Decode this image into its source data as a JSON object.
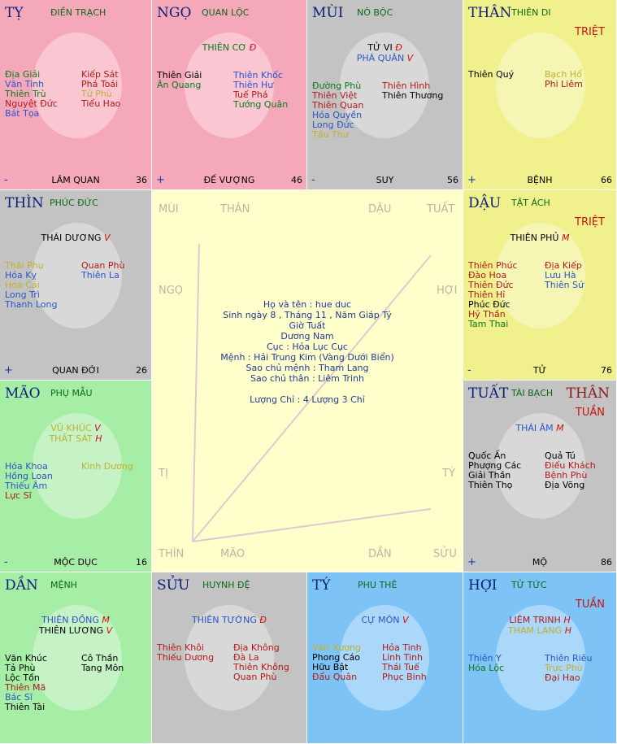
{
  "colors": {
    "pink": "#f6a8bb",
    "gray": "#c3c3c3",
    "yellow": "#f0f08c",
    "green": "#a6eda6",
    "blue": "#7ec3f6",
    "center": "#ffffcc"
  },
  "cells": [
    {
      "id": "ty-ran",
      "branch": "TỴ",
      "palace": "ĐIỀN TRẠCH",
      "color": "pink",
      "main": [],
      "left": [
        [
          "Địa Giải",
          "#0b7a18"
        ],
        [
          "Văn Tinh",
          "#2a55c8"
        ],
        [
          "Thiên Trù",
          "#0b7a18"
        ],
        [
          "Nguyệt Đức",
          "#b01a1a"
        ],
        [
          "Bát Tọa",
          "#2a55c8"
        ]
      ],
      "right": [
        [
          "Kiếp Sát",
          "#b01a1a"
        ],
        [
          "Phá Toái",
          "#b01a1a"
        ],
        [
          "Tử Phù",
          "#c0b030"
        ],
        [
          "Tiểu Hao",
          "#b01a1a"
        ]
      ],
      "sign": "-",
      "phase": "LÂM QUAN",
      "num": "36"
    },
    {
      "id": "ngo",
      "branch": "NGỌ",
      "palace": "QUAN LỘC",
      "color": "pink",
      "main": [
        [
          "THIÊN CƠ",
          "Đ",
          "#0b7a18"
        ]
      ],
      "left": [
        [
          "Thiên Giải",
          "#000000"
        ],
        [
          "Ân Quang",
          "#0b7a18"
        ]
      ],
      "right": [
        [
          "Thiên Khốc",
          "#2a55c8"
        ],
        [
          "Thiên Hư",
          "#2a55c8"
        ],
        [
          "Tuế Phá",
          "#b01a1a"
        ],
        [
          "Tướng Quân",
          "#0b7a18"
        ]
      ],
      "sign": "+",
      "phase": "ĐẾ VƯỢNG",
      "num": "46"
    },
    {
      "id": "mui-top",
      "branch": "MÙI",
      "palace": "NÔ BỘC",
      "color": "gray",
      "main": [
        [
          "TỬ VI",
          "Đ",
          "#000000"
        ],
        [
          "PHÁ QUÂN",
          "V",
          "#2a55c8"
        ]
      ],
      "left": [
        [
          "Đường Phù",
          "#0b7a18"
        ],
        [
          "Thiên Việt",
          "#b01a1a"
        ],
        [
          "Thiên Quan",
          "#b01a1a"
        ],
        [
          "Hóa Quyền",
          "#2a55c8"
        ],
        [
          "Long Đức",
          "#2a55c8"
        ],
        [
          "Tấu Thư",
          "#c0b030"
        ]
      ],
      "right": [
        [
          "Thiên Hình",
          "#b01a1a"
        ],
        [
          "Thiên Thương",
          "#000000"
        ]
      ],
      "sign": "-",
      "phase": "SUY",
      "num": "56"
    },
    {
      "id": "than-top",
      "branch": "THÂN",
      "palace": "THIÊN DI",
      "color": "yellow",
      "tag": "TRIỆT",
      "main": [],
      "left": [
        [
          "Thiên Quý",
          "#000000"
        ]
      ],
      "right": [
        [
          "Bạch Hổ",
          "#c0b030"
        ],
        [
          "Phi Liêm",
          "#b01a1a"
        ]
      ],
      "sign": "+",
      "phase": "BỆNH",
      "num": "66"
    },
    {
      "id": "thin-left",
      "branch": "THÌN",
      "palace": "PHÚC ĐỨC",
      "color": "gray",
      "main": [
        [
          "THÁI DƯƠNG",
          "V",
          "#000000"
        ]
      ],
      "left": [
        [
          "Thái Phụ",
          "#c0b030"
        ],
        [
          "Hóa Kỵ",
          "#2a55c8"
        ],
        [
          "Hoa Cái",
          "#c0b030"
        ],
        [
          "Long Trì",
          "#2a55c8"
        ],
        [
          "Thanh Long",
          "#2a55c8"
        ]
      ],
      "right": [
        [
          "Quan Phù",
          "#b01a1a"
        ],
        [
          "Thiên La",
          "#2a55c8"
        ]
      ],
      "sign": "+",
      "phase": "QUAN ĐỚI",
      "num": "26"
    },
    {
      "id": "dau",
      "branch": "DẬU",
      "palace": "TẬT ÁCH",
      "color": "yellow",
      "tag": "TRIỆT",
      "main": [
        [
          "THIÊN PHỦ",
          "M",
          "#000000"
        ]
      ],
      "left": [
        [
          "Thiên Phúc",
          "#b01a1a"
        ],
        [
          "Đào Hoa",
          "#b01a1a"
        ],
        [
          "Thiên Đức",
          "#b01a1a"
        ],
        [
          "Thiên Hỉ",
          "#b01a1a"
        ],
        [
          "Phúc Đức",
          "#000000"
        ],
        [
          "Hỷ Thần",
          "#b01a1a"
        ],
        [
          "Tam Thai",
          "#0b7a18"
        ]
      ],
      "right": [
        [
          "Địa Kiếp",
          "#b01a1a"
        ],
        [
          "Lưu Hà",
          "#2a55c8"
        ],
        [
          "Thiên Sứ",
          "#2a55c8"
        ]
      ],
      "sign": "-",
      "phase": "TỬ",
      "num": "76"
    },
    {
      "id": "mao-left",
      "branch": "MÃO",
      "palace": "PHỤ MẪU",
      "color": "green",
      "main": [
        [
          "VŨ KHÚC",
          "V",
          "#c0b030"
        ],
        [
          "THẤT SÁT",
          "H",
          "#c0b030"
        ]
      ],
      "left": [
        [
          "Hóa Khoa",
          "#2a55c8"
        ],
        [
          "Hồng Loan",
          "#2a55c8"
        ],
        [
          "Thiếu Âm",
          "#2a55c8"
        ],
        [
          "Lực Sĩ",
          "#b01a1a"
        ]
      ],
      "right": [
        [
          "Kình Dương",
          "#c0b030"
        ]
      ],
      "sign": "-",
      "phase": "MỘC DỤC",
      "num": "16"
    },
    {
      "id": "tuat",
      "branch": "TUẤT",
      "palace": "TÀI BẠCH",
      "color": "gray",
      "than": "THÂN",
      "tag": "TUẦN",
      "main": [
        [
          "THÁI ÂM",
          "M",
          "#2a55c8"
        ]
      ],
      "left": [
        [
          "Quốc Ấn",
          "#000000"
        ],
        [
          "Phượng Các",
          "#000000"
        ],
        [
          "Giải Thần",
          "#000000"
        ],
        [
          "Thiên Thọ",
          "#000000"
        ]
      ],
      "right": [
        [
          "Quả Tú",
          "#000000"
        ],
        [
          "Điếu Khách",
          "#b01a1a"
        ],
        [
          "Bệnh Phù",
          "#b01a1a"
        ],
        [
          "Địa Võng",
          "#000000"
        ]
      ],
      "sign": "+",
      "phase": "MỘ",
      "num": "86"
    },
    {
      "id": "dan",
      "branch": "DẦN",
      "palace": "MỆNH",
      "color": "green",
      "main": [
        [
          "THIÊN ĐỒNG",
          "M",
          "#2a55c8"
        ],
        [
          "THIÊN LƯƠNG",
          "V",
          "#000000"
        ]
      ],
      "left": [
        [
          "Văn Khúc",
          "#000000"
        ],
        [
          "Tả Phù",
          "#000000"
        ],
        [
          "Lộc Tồn",
          "#000000"
        ],
        [
          "Thiên Mã",
          "#b01a1a"
        ],
        [
          "Bác Sĩ",
          "#2a55c8"
        ],
        [
          "Thiên Tài",
          "#000000"
        ]
      ],
      "right": [
        [
          "Cô Thần",
          "#000000"
        ],
        [
          "Tang Môn",
          "#000000"
        ]
      ],
      "sign": "",
      "phase": "",
      "num": ""
    },
    {
      "id": "suu",
      "branch": "SỬU",
      "palace": "HUYNH ĐỆ",
      "color": "gray",
      "main": [
        [
          "THIÊN TƯỚNG",
          "Đ",
          "#2a55c8"
        ]
      ],
      "left": [
        [
          "Thiên Khôi",
          "#b01a1a"
        ],
        [
          "Thiếu Dương",
          "#b01a1a"
        ]
      ],
      "right": [
        [
          "Địa Không",
          "#b01a1a"
        ],
        [
          "Đà La",
          "#b01a1a"
        ],
        [
          "Thiên Không",
          "#b01a1a"
        ],
        [
          "Quan Phù",
          "#b01a1a"
        ]
      ],
      "sign": "",
      "phase": "",
      "num": ""
    },
    {
      "id": "ty-rat",
      "branch": "TÝ",
      "palace": "PHU THÊ",
      "color": "blue",
      "main": [
        [
          "CỰ MÔN",
          "V",
          "#2a55c8"
        ]
      ],
      "left": [
        [
          "Văn Xương",
          "#c0b030"
        ],
        [
          "Phong Cáo",
          "#000000"
        ],
        [
          "Hữu Bật",
          "#000000"
        ],
        [
          "Đẩu Quân",
          "#b01a1a"
        ]
      ],
      "right": [
        [
          "Hỏa Tinh",
          "#b01a1a"
        ],
        [
          "Linh Tinh",
          "#b01a1a"
        ],
        [
          "Thái Tuế",
          "#b01a1a"
        ],
        [
          "Phục Binh",
          "#b01a1a"
        ]
      ],
      "sign": "",
      "phase": "",
      "num": ""
    },
    {
      "id": "hoi",
      "branch": "HỢI",
      "palace": "TỬ TỨC",
      "color": "blue",
      "tag": "TUẦN",
      "main": [
        [
          "LIÊM TRINH",
          "H",
          "#b01a1a"
        ],
        [
          "THAM LANG",
          "H",
          "#c0b030"
        ]
      ],
      "left": [
        [
          "Thiên Y",
          "#2a55c8"
        ],
        [
          "Hóa Lộc",
          "#0b7a18"
        ]
      ],
      "right": [
        [
          "Thiên Riêu",
          "#2a55c8"
        ],
        [
          "Trực Phù",
          "#c0b030"
        ],
        [
          "Đại Hao",
          "#b01a1a"
        ]
      ],
      "sign": "",
      "phase": "",
      "num": ""
    }
  ],
  "center": {
    "labels": [
      "MÙI",
      "THÂN",
      "DẬU",
      "TUẤT",
      "NGỌ",
      "HỢI",
      "TỊ",
      "TÝ",
      "THÌN",
      "MÃO",
      "DẦN",
      "SỬU"
    ],
    "info": [
      "Họ và tên : hue duc",
      "Sinh ngày 8 , Tháng 11 , Năm Giáp Tý",
      "Giờ Tuất",
      "Dương Nam",
      "Cục : Hỏa Lục Cục",
      "Mệnh : Hải Trung Kim (Vàng Dưới Biển)",
      "Sao chủ mệnh : Tham Lang",
      "Sao chủ thân : Liêm Trinh",
      "",
      "Lượng Chỉ : 4 Lượng 3 Chỉ"
    ]
  }
}
